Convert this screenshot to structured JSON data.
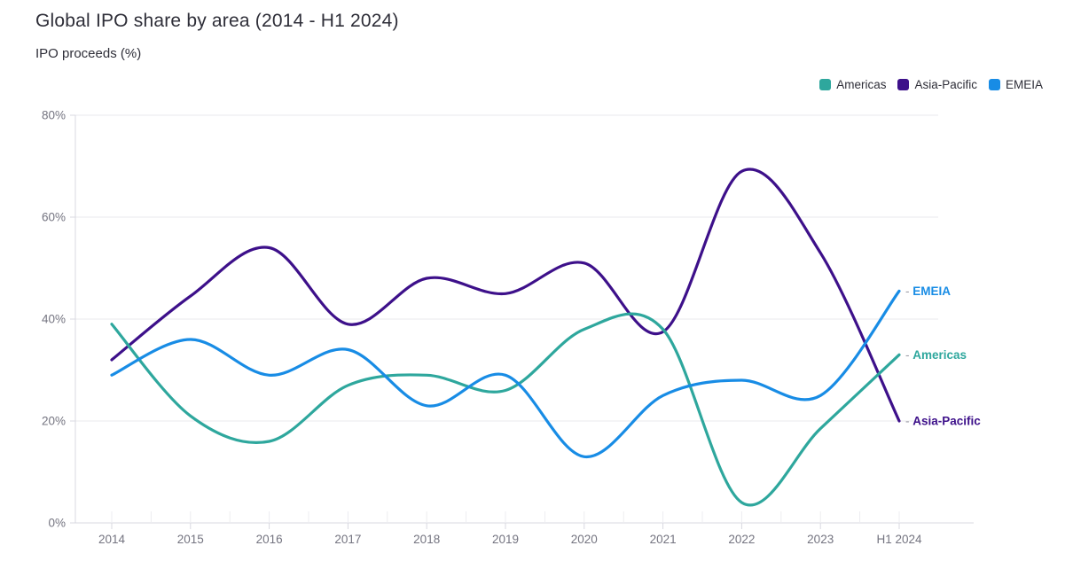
{
  "header": {
    "title": "Global IPO share by area (2014 - H1 2024)",
    "subtitle": "IPO proceeds (%)"
  },
  "legend": {
    "position": "top-right",
    "items": [
      {
        "label": "Americas",
        "color": "#2ea79d"
      },
      {
        "label": "Asia-Pacific",
        "color": "#3d108a"
      },
      {
        "label": "EMEIA",
        "color": "#188ce5"
      }
    ]
  },
  "chart_data": {
    "type": "line",
    "curve": "smooth-spline",
    "title": "Global IPO share by area (2014 - H1 2024)",
    "ylabel": "IPO proceeds (%)",
    "xlabel": "",
    "grid": "horizontal",
    "legend_position": "top-right",
    "ylim": [
      0,
      80
    ],
    "yticks": [
      "0%",
      "20%",
      "40%",
      "60%",
      "80%"
    ],
    "categories": [
      "2014",
      "2015",
      "2016",
      "2017",
      "2018",
      "2019",
      "2020",
      "2021",
      "2022",
      "2023",
      "H1 2024"
    ],
    "series": [
      {
        "name": "Americas",
        "end_label": "Americas",
        "color": "#2ea79d",
        "values": [
          39,
          21,
          16,
          27,
          29,
          26,
          38,
          38,
          4,
          18.5,
          33
        ]
      },
      {
        "name": "Asia-Pacific",
        "end_label": "Asia-Pacific",
        "color": "#3d108a",
        "values": [
          32,
          44.5,
          54,
          39,
          48,
          45,
          51,
          37.5,
          69,
          53,
          20
        ]
      },
      {
        "name": "EMEIA",
        "end_label": "EMEIA",
        "color": "#188ce5",
        "values": [
          29,
          36,
          29,
          34,
          23,
          29,
          13,
          25,
          28,
          25,
          45.5
        ]
      }
    ]
  }
}
